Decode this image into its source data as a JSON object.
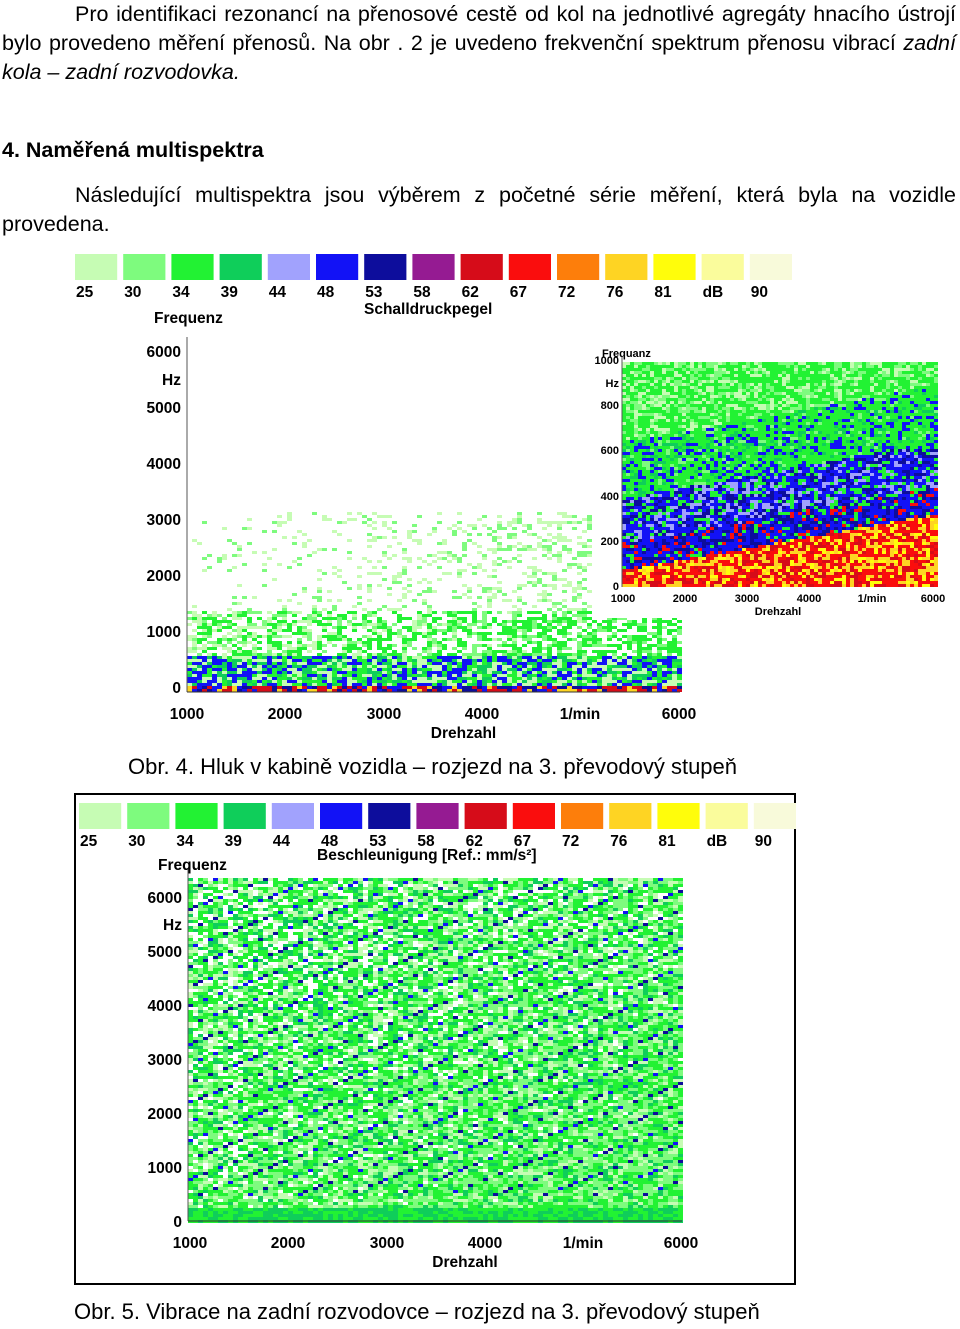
{
  "intro": {
    "text_plain": "Pro identifikaci rezonancí na přenosové cestě od kol na jednotlivé agregáty hnacího ústrojí bylo provedeno měření přenosů. Na obr . 2 je uvedeno frekvenční spektrum přenosu vibrací ",
    "text_italic": "zadní kola – zadní rozvodovka."
  },
  "section": {
    "heading": "4. Naměřená multispektra",
    "text": "Následující multispektra jsou výběrem z početné série měření, která byla na vozidle provedena."
  },
  "legend": {
    "colors": [
      "#c6fcb4",
      "#7efb7e",
      "#22f233",
      "#0fce5a",
      "#a1a2fd",
      "#1212f6",
      "#0d0d9c",
      "#951b92",
      "#d60c19",
      "#fa0d0d",
      "#fd7e0b",
      "#fed423",
      "#fffd0b",
      "#fafc9c",
      "#f8fada"
    ],
    "ticks": [
      "25",
      "30",
      "34",
      "39",
      "44",
      "48",
      "53",
      "58",
      "62",
      "67",
      "72",
      "76",
      "81",
      "dB",
      "90"
    ]
  },
  "chart_data": [
    {
      "type": "heatmap",
      "title": "Schalldruckpegel",
      "xlabel": "Drehzahl",
      "ylabel": "Frequenz",
      "y_unit": "Hz",
      "x_unit": "1/min",
      "x_ticks": [
        "1000",
        "2000",
        "3000",
        "4000",
        "1/min",
        "6000"
      ],
      "y_ticks": [
        "6000",
        "Hz",
        "5000",
        "4000",
        "3000",
        "2000",
        "1000",
        "0"
      ],
      "xlim": [
        1000,
        6000
      ],
      "ylim": [
        0,
        6500
      ],
      "color_scale_db": [
        25,
        90
      ],
      "inset": {
        "type": "heatmap",
        "xlabel": "Drehzahl",
        "ylabel": "Frequanz",
        "y_unit": "Hz",
        "x_ticks": [
          "1000",
          "2000",
          "3000",
          "4000",
          "1/min",
          "6000"
        ],
        "y_ticks": [
          "1000",
          "Hz",
          "800",
          "600",
          "400",
          "200",
          "0"
        ],
        "xlim": [
          1000,
          6000
        ],
        "ylim": [
          0,
          1000
        ]
      }
    },
    {
      "type": "heatmap",
      "title": "Beschleunigung [Ref.: mm/s²]",
      "xlabel": "Drehzahl",
      "ylabel": "Frequenz",
      "y_unit": "Hz",
      "x_ticks": [
        "1000",
        "2000",
        "3000",
        "4000",
        "1/min",
        "6000"
      ],
      "y_ticks": [
        "6000",
        "Hz",
        "5000",
        "4000",
        "3000",
        "2000",
        "1000",
        "0"
      ],
      "xlim": [
        1000,
        6000
      ],
      "ylim": [
        0,
        6500
      ],
      "color_scale_db": [
        25,
        90
      ]
    }
  ],
  "captions": {
    "fig4": "Obr. 4. Hluk v kabině vozidla – rozjezd na 3. převodový stupeň",
    "fig5": "Obr. 5. Vibrace na zadní rozvodovce – rozjezd na 3. převodový stupeň"
  }
}
